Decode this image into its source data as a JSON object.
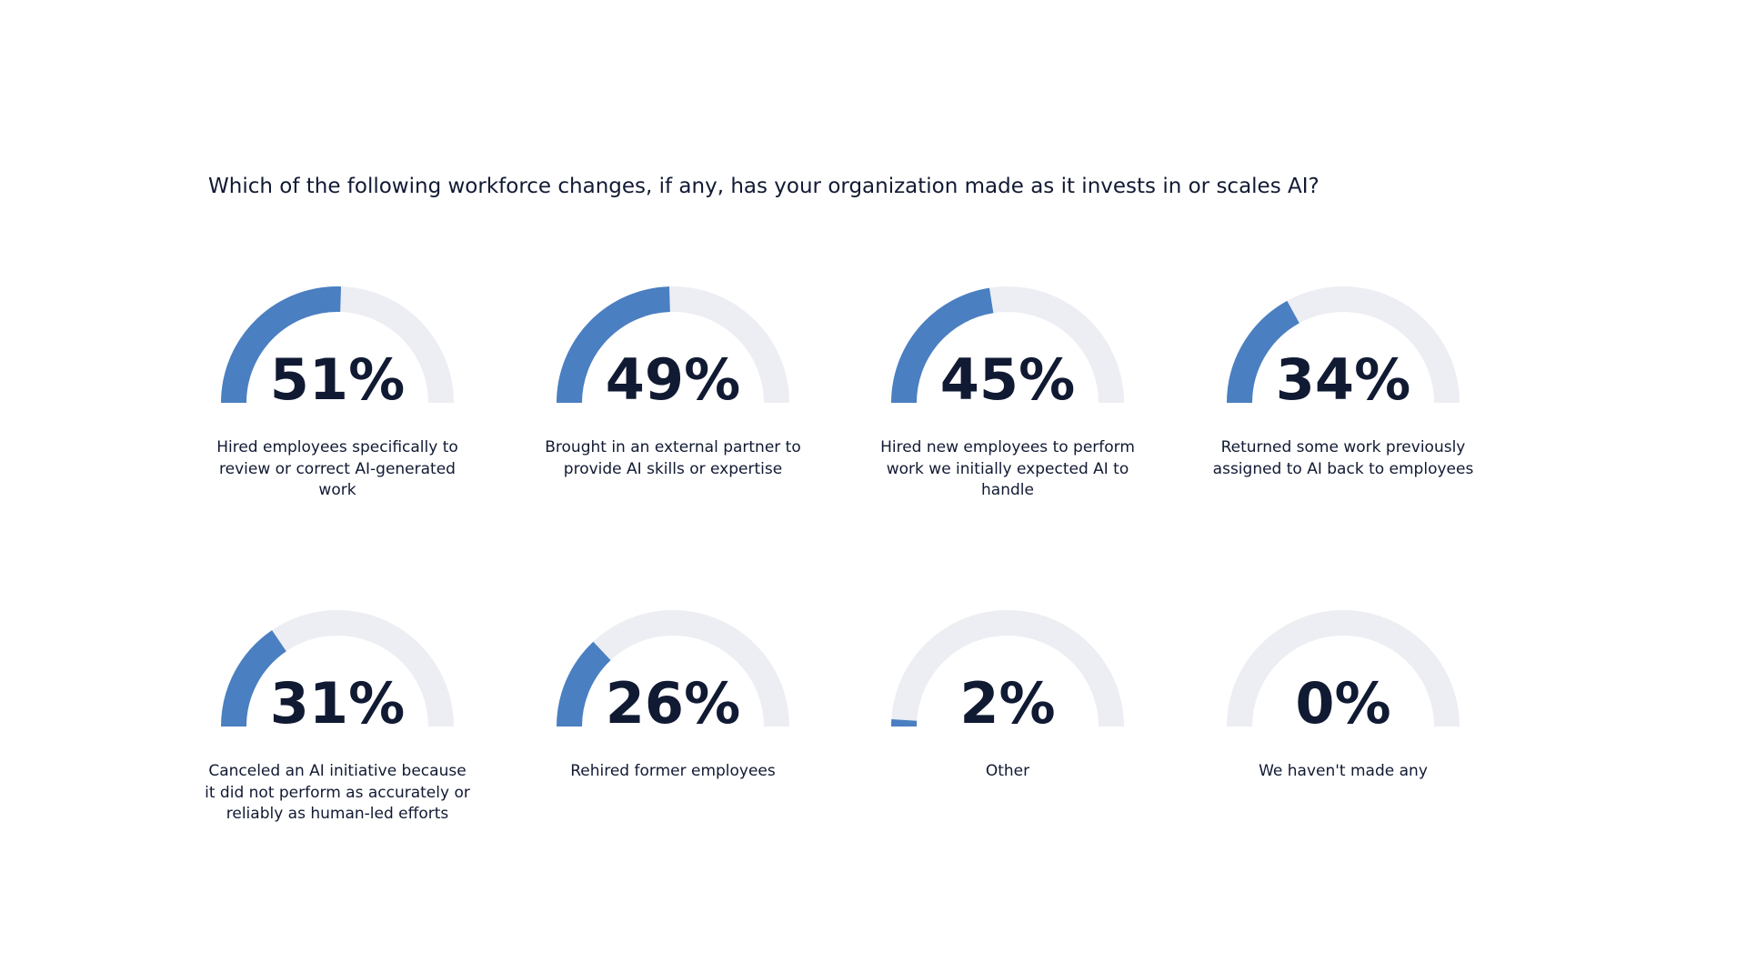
{
  "chart_data": {
    "type": "gauge",
    "title": "Which of the following workforce changes, if any, has your organization made as it invests in or scales AI?",
    "categories": [
      "Hired employees specifically to review or correct AI-generated work",
      "Brought in an external partner to provide AI skills or expertise",
      "Hired new employees to perform work we initially expected AI to handle",
      "Returned some work previously assigned to AI back to employees",
      "Canceled an AI initiative because it did not perform as accurately or reliably as human-led efforts",
      "Rehired former employees",
      "Other",
      "We haven't made any"
    ],
    "values": [
      51,
      49,
      45,
      34,
      31,
      26,
      2,
      0
    ],
    "value_labels": [
      "51%",
      "49%",
      "45%",
      "34%",
      "31%",
      "26%",
      "2%",
      "0%"
    ],
    "ylim": [
      0,
      100
    ],
    "color": "#4a7fc1",
    "track_color": "#eceef3"
  }
}
